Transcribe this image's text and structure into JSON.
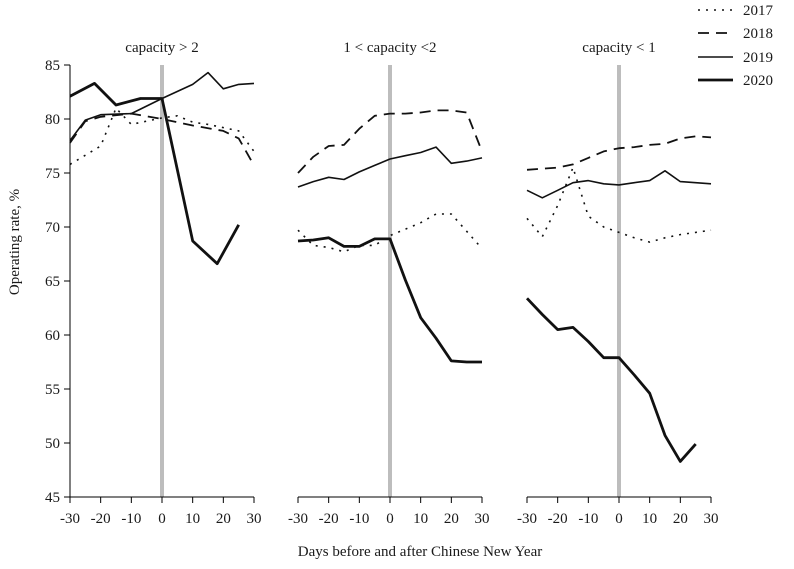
{
  "chart_data": {
    "type": "line",
    "ylabel": "Operating rate, %",
    "xlabel": "Days before and after Chinese New Year",
    "ylim": [
      45,
      85
    ],
    "yticks": [
      45,
      50,
      55,
      60,
      65,
      70,
      75,
      80,
      85
    ],
    "xlim": [
      -30,
      30
    ],
    "xticks": [
      -30,
      -20,
      -10,
      0,
      10,
      20,
      30
    ],
    "xtick_labels": [
      "-30",
      "-20",
      "-10",
      "0",
      "10",
      "20",
      "30"
    ],
    "legend": [
      "2017",
      "2018",
      "2019",
      "2020"
    ],
    "panels": [
      {
        "title": "capacity > 2",
        "series": [
          {
            "name": "2017",
            "x": [
              -30,
              -20,
              -15,
              -10,
              0,
              5,
              10,
              15,
              20,
              25,
              30
            ],
            "y": [
              75.8,
              77.5,
              81.0,
              79.5,
              80.1,
              80.3,
              79.7,
              79.5,
              79.2,
              78.9,
              77.0
            ]
          },
          {
            "name": "2018",
            "x": [
              -30,
              -25,
              -20,
              -10,
              0,
              10,
              20,
              25,
              30
            ],
            "y": [
              77.8,
              79.8,
              80.2,
              80.5,
              80.0,
              79.4,
              78.9,
              78.2,
              75.7
            ]
          },
          {
            "name": "2019",
            "x": [
              -30,
              -25,
              -20,
              -10,
              0,
              10,
              15,
              20,
              25,
              30
            ],
            "y": [
              78.0,
              79.9,
              80.4,
              80.5,
              81.9,
              83.2,
              84.3,
              82.8,
              83.2,
              83.3
            ]
          },
          {
            "name": "2020",
            "x": [
              -30,
              -22,
              -15,
              -7,
              0,
              10,
              18,
              25,
              30
            ],
            "y": [
              82.1,
              83.3,
              81.3,
              81.9,
              81.9,
              68.7,
              66.6,
              70.2,
              null
            ]
          }
        ]
      },
      {
        "title": "1 < capacity <2",
        "series": [
          {
            "name": "2017",
            "x": [
              -30,
              -25,
              -20,
              -15,
              -10,
              -5,
              0,
              5,
              10,
              15,
              20,
              25,
              30
            ],
            "y": [
              69.7,
              68.3,
              68.1,
              67.7,
              68.3,
              68.3,
              69.2,
              69.8,
              70.4,
              71.2,
              71.2,
              69.6,
              68.0
            ]
          },
          {
            "name": "2018",
            "x": [
              -30,
              -25,
              -20,
              -15,
              -10,
              -5,
              0,
              5,
              10,
              15,
              20,
              25,
              30
            ],
            "y": [
              75.0,
              76.5,
              77.5,
              77.6,
              79.1,
              80.3,
              80.5,
              80.5,
              80.6,
              80.8,
              80.8,
              80.6,
              77.0
            ]
          },
          {
            "name": "2019",
            "x": [
              -30,
              -25,
              -20,
              -15,
              -10,
              -5,
              0,
              5,
              10,
              15,
              20,
              25,
              30
            ],
            "y": [
              73.7,
              74.2,
              74.6,
              74.4,
              75.1,
              75.7,
              76.3,
              76.6,
              76.9,
              77.4,
              75.9,
              76.1,
              76.4
            ]
          },
          {
            "name": "2020",
            "x": [
              -30,
              -25,
              -20,
              -15,
              -10,
              -5,
              0,
              5,
              10,
              15,
              20,
              25,
              30
            ],
            "y": [
              68.7,
              68.8,
              69.0,
              68.2,
              68.2,
              68.9,
              68.9,
              65.1,
              61.6,
              59.7,
              57.6,
              57.5,
              57.5
            ]
          }
        ]
      },
      {
        "title": "capacity < 1",
        "series": [
          {
            "name": "2017",
            "x": [
              -30,
              -25,
              -20,
              -15,
              -10,
              -5,
              0,
              5,
              10,
              15,
              20,
              25,
              30
            ],
            "y": [
              70.8,
              69.1,
              72.0,
              75.5,
              71.0,
              70.0,
              69.5,
              69.0,
              68.6,
              69.0,
              69.3,
              69.5,
              69.7
            ]
          },
          {
            "name": "2018",
            "x": [
              -30,
              -25,
              -20,
              -15,
              -10,
              -5,
              0,
              5,
              10,
              15,
              20,
              25,
              30
            ],
            "y": [
              75.3,
              75.4,
              75.5,
              75.8,
              76.4,
              77.0,
              77.3,
              77.4,
              77.6,
              77.7,
              78.2,
              78.4,
              78.3
            ]
          },
          {
            "name": "2019",
            "x": [
              -30,
              -25,
              -20,
              -15,
              -10,
              -5,
              0,
              5,
              10,
              15,
              20,
              25,
              30
            ],
            "y": [
              73.4,
              72.7,
              73.4,
              74.1,
              74.3,
              74.0,
              73.9,
              74.1,
              74.3,
              75.2,
              74.2,
              74.1,
              74.0
            ]
          },
          {
            "name": "2020",
            "x": [
              -30,
              -25,
              -20,
              -15,
              -10,
              -5,
              0,
              5,
              10,
              15,
              20,
              25,
              30
            ],
            "y": [
              63.4,
              61.9,
              60.5,
              60.7,
              59.4,
              57.9,
              57.9,
              56.3,
              54.6,
              50.7,
              48.3,
              49.9,
              null
            ]
          }
        ]
      }
    ],
    "reference_line": {
      "x": 0,
      "color": "#bdbdbd"
    },
    "colors": {
      "lines": "#111111",
      "axis": "#000000",
      "refline": "#bdbdbd"
    }
  }
}
